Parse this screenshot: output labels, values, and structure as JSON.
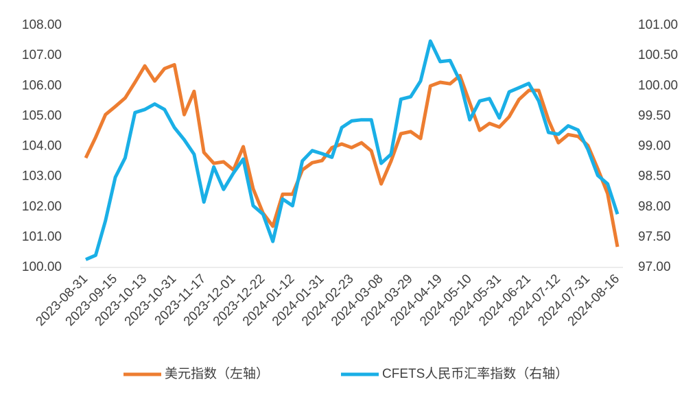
{
  "chart_data": {
    "type": "line",
    "categories": [
      "2023-08-31",
      null,
      null,
      "2023-09-15",
      null,
      null,
      "2023-10-13",
      null,
      null,
      "2023-10-31",
      null,
      null,
      "2023-11-17",
      null,
      null,
      "2023-12-01",
      null,
      null,
      "2023-12-22",
      null,
      null,
      "2024-01-12",
      null,
      null,
      "2024-01-31",
      null,
      null,
      "2024-02-23",
      null,
      null,
      "2024-03-08",
      null,
      null,
      "2024-03-29",
      null,
      null,
      "2024-04-19",
      null,
      null,
      "2024-05-10",
      null,
      null,
      "2024-05-31",
      null,
      null,
      "2024-06-21",
      null,
      null,
      "2024-07-12",
      null,
      null,
      "2024-07-31",
      null,
      null,
      "2024-08-16"
    ],
    "series": [
      {
        "name": "美元指数（左轴）",
        "color": "#ED7D31",
        "values": [
          103.62,
          104.3,
          105.05,
          105.32,
          105.6,
          106.12,
          106.66,
          106.16,
          106.57,
          106.7,
          105.05,
          105.82,
          103.8,
          103.44,
          103.49,
          103.22,
          103.99,
          102.6,
          101.8,
          101.36,
          102.42,
          102.42,
          103.22,
          103.46,
          103.53,
          103.96,
          104.08,
          103.96,
          104.12,
          103.85,
          102.76,
          103.51,
          104.42,
          104.49,
          104.26,
          106.0,
          106.12,
          106.07,
          106.34,
          105.44,
          104.53,
          104.76,
          104.64,
          104.98,
          105.55,
          105.85,
          105.85,
          104.87,
          104.12,
          104.39,
          104.33,
          104.03,
          103.26,
          102.44,
          100.68
        ]
      },
      {
        "name": "CFETS人民币汇率指数（右轴）",
        "color": "#1AAFE6",
        "axis": "y2",
        "values": [
          97.13,
          97.2,
          97.77,
          98.49,
          98.81,
          99.56,
          99.61,
          99.7,
          99.61,
          99.31,
          99.11,
          98.87,
          98.08,
          98.66,
          98.29,
          98.56,
          98.79,
          98.02,
          97.88,
          97.43,
          98.13,
          98.02,
          98.76,
          98.93,
          98.88,
          98.82,
          99.31,
          99.42,
          99.44,
          99.44,
          98.72,
          98.87,
          99.78,
          99.82,
          100.08,
          100.74,
          100.4,
          100.42,
          100.08,
          99.44,
          99.75,
          99.79,
          99.47,
          99.9,
          99.97,
          100.04,
          99.75,
          99.23,
          99.2,
          99.34,
          99.27,
          98.95,
          98.52,
          98.38,
          97.88
        ]
      }
    ],
    "ylim": [
      100,
      108
    ],
    "yticks": [
      {
        "value": 100,
        "label": "100.00"
      },
      {
        "value": 101,
        "label": "101.00"
      },
      {
        "value": 102,
        "label": "102.00"
      },
      {
        "value": 103,
        "label": "103.00"
      },
      {
        "value": 104,
        "label": "104.00"
      },
      {
        "value": 105,
        "label": "105.00"
      },
      {
        "value": 106,
        "label": "106.00"
      },
      {
        "value": 107,
        "label": "107.00"
      },
      {
        "value": 108,
        "label": "108.00"
      }
    ],
    "y2lim": [
      97,
      101
    ],
    "y2ticks": [
      {
        "value": 97,
        "label": "97.00"
      },
      {
        "value": 97.5,
        "label": "97.50"
      },
      {
        "value": 98,
        "label": "98.00"
      },
      {
        "value": 98.5,
        "label": "98.50"
      },
      {
        "value": 99,
        "label": "99.00"
      },
      {
        "value": 99.5,
        "label": "99.50"
      },
      {
        "value": 100,
        "label": "100.00"
      },
      {
        "value": 100.5,
        "label": "100.50"
      },
      {
        "value": 101,
        "label": "101.00"
      }
    ],
    "grid": false,
    "legend": "bottom"
  }
}
